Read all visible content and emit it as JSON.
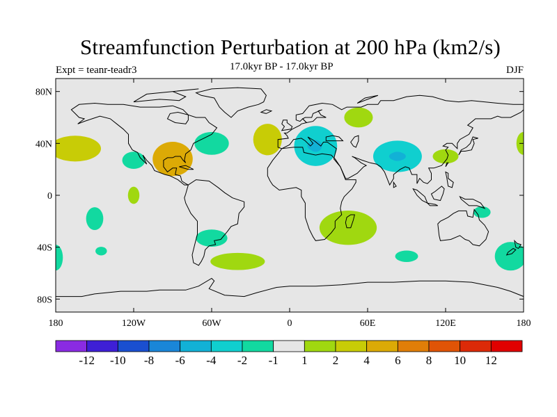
{
  "chart_data": {
    "type": "filled-contour-map",
    "title": "Streamfunction Perturbation at 200 hPa (km2/s)",
    "experiment": "Expt = teanr-teadr3",
    "period": "17.0kyr BP - 17.0kyr BP",
    "season": "DJF",
    "projection": "cylindrical equidistant",
    "xlim": [
      -180,
      180
    ],
    "ylim": [
      -90,
      90
    ],
    "x_ticks": [
      {
        "value": -180,
        "label": "180"
      },
      {
        "value": -120,
        "label": "120W"
      },
      {
        "value": -60,
        "label": "60W"
      },
      {
        "value": 0,
        "label": "0"
      },
      {
        "value": 60,
        "label": "60E"
      },
      {
        "value": 120,
        "label": "120E"
      },
      {
        "value": 180,
        "label": "180"
      }
    ],
    "y_ticks": [
      {
        "value": 80,
        "label": "80N"
      },
      {
        "value": 40,
        "label": "40N"
      },
      {
        "value": 0,
        "label": "0"
      },
      {
        "value": -40,
        "label": "40S"
      },
      {
        "value": -80,
        "label": "80S"
      }
    ],
    "colorbar": {
      "colors": [
        "#8a2be2",
        "#3e1fd6",
        "#1a4fd0",
        "#1a86d8",
        "#12b1d6",
        "#10cfcf",
        "#12d9a0",
        "#e6e6e6",
        "#a0d810",
        "#c8cc06",
        "#dcaa06",
        "#e07e08",
        "#e05406",
        "#dc2a08",
        "#e00000"
      ],
      "labels": [
        "-12",
        "-10",
        "-8",
        "-6",
        "-4",
        "-2",
        "-1",
        "1",
        "2",
        "4",
        "6",
        "8",
        "10",
        "12"
      ]
    },
    "anomalies": [
      {
        "lon": -165,
        "lat": 36,
        "sign": "positive",
        "level": "2 to 4"
      },
      {
        "lon": -120,
        "lat": 27,
        "sign": "negative",
        "level": "-2 to -1"
      },
      {
        "lon": -90,
        "lat": 28,
        "sign": "positive",
        "level": "4 to 6"
      },
      {
        "lon": -60,
        "lat": 40,
        "sign": "negative",
        "level": "-2 to -1"
      },
      {
        "lon": -120,
        "lat": 0,
        "sign": "positive",
        "level": "1 to 2"
      },
      {
        "lon": -150,
        "lat": -18,
        "sign": "negative",
        "level": "-2 to -1"
      },
      {
        "lon": -145,
        "lat": -43,
        "sign": "negative",
        "level": "-2 to -1"
      },
      {
        "lon": -60,
        "lat": -33,
        "sign": "negative",
        "level": "-2 to -1"
      },
      {
        "lon": -40,
        "lat": -51,
        "sign": "positive",
        "level": "1 to 2"
      },
      {
        "lon": -17,
        "lat": 43,
        "sign": "positive",
        "level": "2 to 4"
      },
      {
        "lon": 20,
        "lat": 38,
        "sign": "negative",
        "level": "-4 to -2"
      },
      {
        "lon": 53,
        "lat": 60,
        "sign": "positive",
        "level": "1 to 2"
      },
      {
        "lon": 83,
        "lat": 30,
        "sign": "negative",
        "level": "-4 to -2"
      },
      {
        "lon": 120,
        "lat": 30,
        "sign": "positive",
        "level": "1 to 2"
      },
      {
        "lon": 45,
        "lat": -25,
        "sign": "positive",
        "level": "1 to 2"
      },
      {
        "lon": 90,
        "lat": -47,
        "sign": "negative",
        "level": "-2 to -1"
      },
      {
        "lon": 148,
        "lat": -13,
        "sign": "negative",
        "level": "-2 to -1"
      },
      {
        "lon": 170,
        "lat": -47,
        "sign": "negative",
        "level": "-2 to -1"
      },
      {
        "lon": -180,
        "lat": -48,
        "sign": "negative",
        "level": "-2 to -1"
      },
      {
        "lon": 180,
        "lat": 40,
        "sign": "positive",
        "level": "1 to 2"
      }
    ]
  }
}
